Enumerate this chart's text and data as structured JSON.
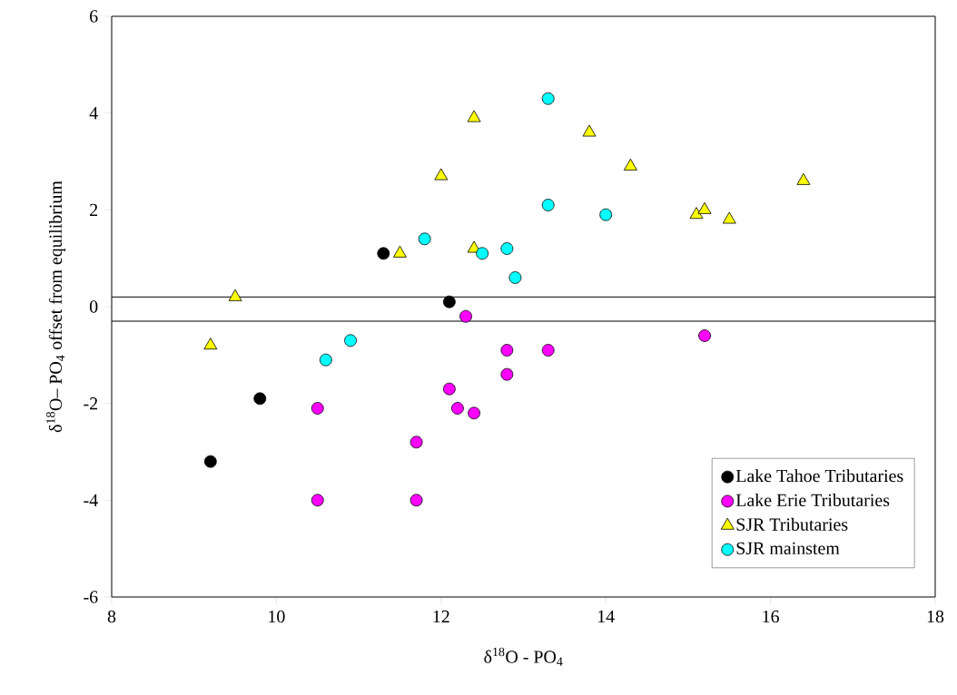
{
  "chart_data": {
    "type": "scatter",
    "xlabel": "δ$^{18}$O - PO$_{4}$",
    "ylabel": "δ$^{18}$O– PO$_{4}$ offset from equilibrium",
    "xlim": [
      8,
      18
    ],
    "ylim": [
      -6,
      6
    ],
    "xticks": [
      8,
      10,
      12,
      14,
      16,
      18
    ],
    "yticks": [
      -6,
      -4,
      -2,
      0,
      2,
      4,
      6
    ],
    "grid": false,
    "legend": "bottom right",
    "ref_lines": [
      {
        "axis": "y",
        "value": 0.2,
        "color": "#000000"
      },
      {
        "axis": "y",
        "value": -0.3,
        "color": "#000000"
      }
    ],
    "series": [
      {
        "name": "Lake Tahoe Tributaries",
        "color": "#000000",
        "marker": "circle",
        "x": [
          9.2,
          9.8,
          11.3,
          12.1
        ],
        "values": [
          -3.2,
          -1.9,
          1.1,
          0.1
        ]
      },
      {
        "name": "Lake Erie Tributaries",
        "color": "#ff00ff",
        "marker": "circle",
        "x": [
          10.5,
          10.5,
          11.7,
          11.7,
          12.1,
          12.2,
          12.4,
          12.3,
          12.8,
          12.8,
          13.3,
          15.2
        ],
        "values": [
          -2.1,
          -4.0,
          -2.8,
          -4.0,
          -1.7,
          -2.1,
          -2.2,
          -0.2,
          -0.9,
          -1.4,
          -0.9,
          -0.6
        ]
      },
      {
        "name": "SJR Tributaries",
        "color": "#ffff00",
        "marker": "triangle",
        "x": [
          9.2,
          9.5,
          11.5,
          12.0,
          12.4,
          12.4,
          13.8,
          14.3,
          15.1,
          15.2,
          15.5,
          16.4
        ],
        "values": [
          -0.8,
          0.2,
          1.1,
          2.7,
          3.9,
          1.2,
          3.6,
          2.9,
          1.9,
          2.0,
          1.8,
          2.6
        ]
      },
      {
        "name": "SJR mainstem",
        "color": "#00ffff",
        "marker": "circle",
        "x": [
          10.6,
          10.9,
          11.8,
          12.5,
          12.8,
          12.9,
          13.3,
          13.3,
          14.0
        ],
        "values": [
          -1.1,
          -0.7,
          1.4,
          1.1,
          1.2,
          0.6,
          4.3,
          2.1,
          1.9
        ]
      }
    ]
  }
}
